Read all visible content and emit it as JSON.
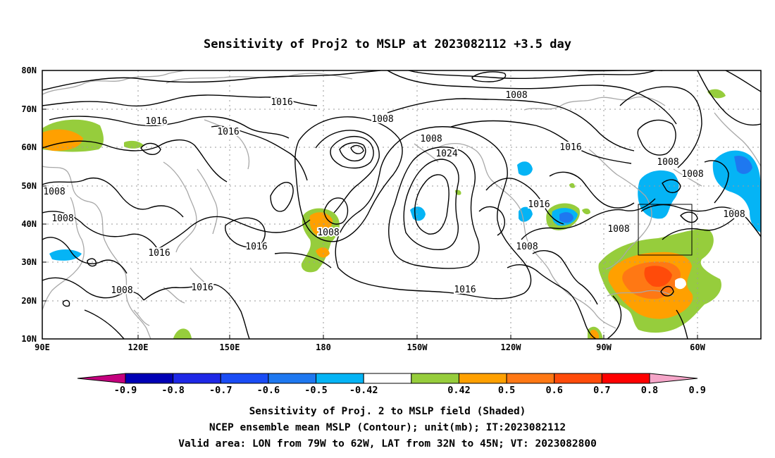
{
  "title": "Sensitivity of Proj2 to MSLP at 2023082112 +3.5 day",
  "axes": {
    "lat_labels": [
      "80N",
      "70N",
      "60N",
      "50N",
      "40N",
      "30N",
      "20N",
      "10N"
    ],
    "lon_labels": [
      "90E",
      "120E",
      "150E",
      "180",
      "150W",
      "120W",
      "90W",
      "60W"
    ]
  },
  "contour_labels": [
    "1016",
    "1016",
    "1016",
    "1008",
    "1008",
    "1016",
    "1024",
    "1008",
    "1016",
    "1008",
    "1008",
    "1008",
    "1016",
    "1008",
    "1016",
    "1016",
    "1008",
    "1008",
    "1008",
    "1008",
    "1016",
    "1016",
    "1008"
  ],
  "colorbar": {
    "tick_labels": [
      "-0.9",
      "-0.8",
      "-0.7",
      "-0.6",
      "-0.5",
      "-0.42",
      "0.42",
      "0.5",
      "0.6",
      "0.7",
      "0.8",
      "0.9"
    ],
    "colors": [
      "#c4007e",
      "#0000b5",
      "#1e28e6",
      "#1a4cf5",
      "#1e78f0",
      "#05b4f5",
      "#ffffff",
      "#96cd3c",
      "#ffa000",
      "#ff7814",
      "#ff4b0a",
      "#ff0000",
      "#f5a5c8"
    ]
  },
  "captions": [
    "Sensitivity of Proj. 2 to MSLP field (Shaded)",
    "NCEP ensemble mean MSLP (Contour); unit(mb); IT:2023082112",
    "Valid area: LON from 79W to 62W, LAT from 32N to 45N; VT: 2023082800"
  ]
}
